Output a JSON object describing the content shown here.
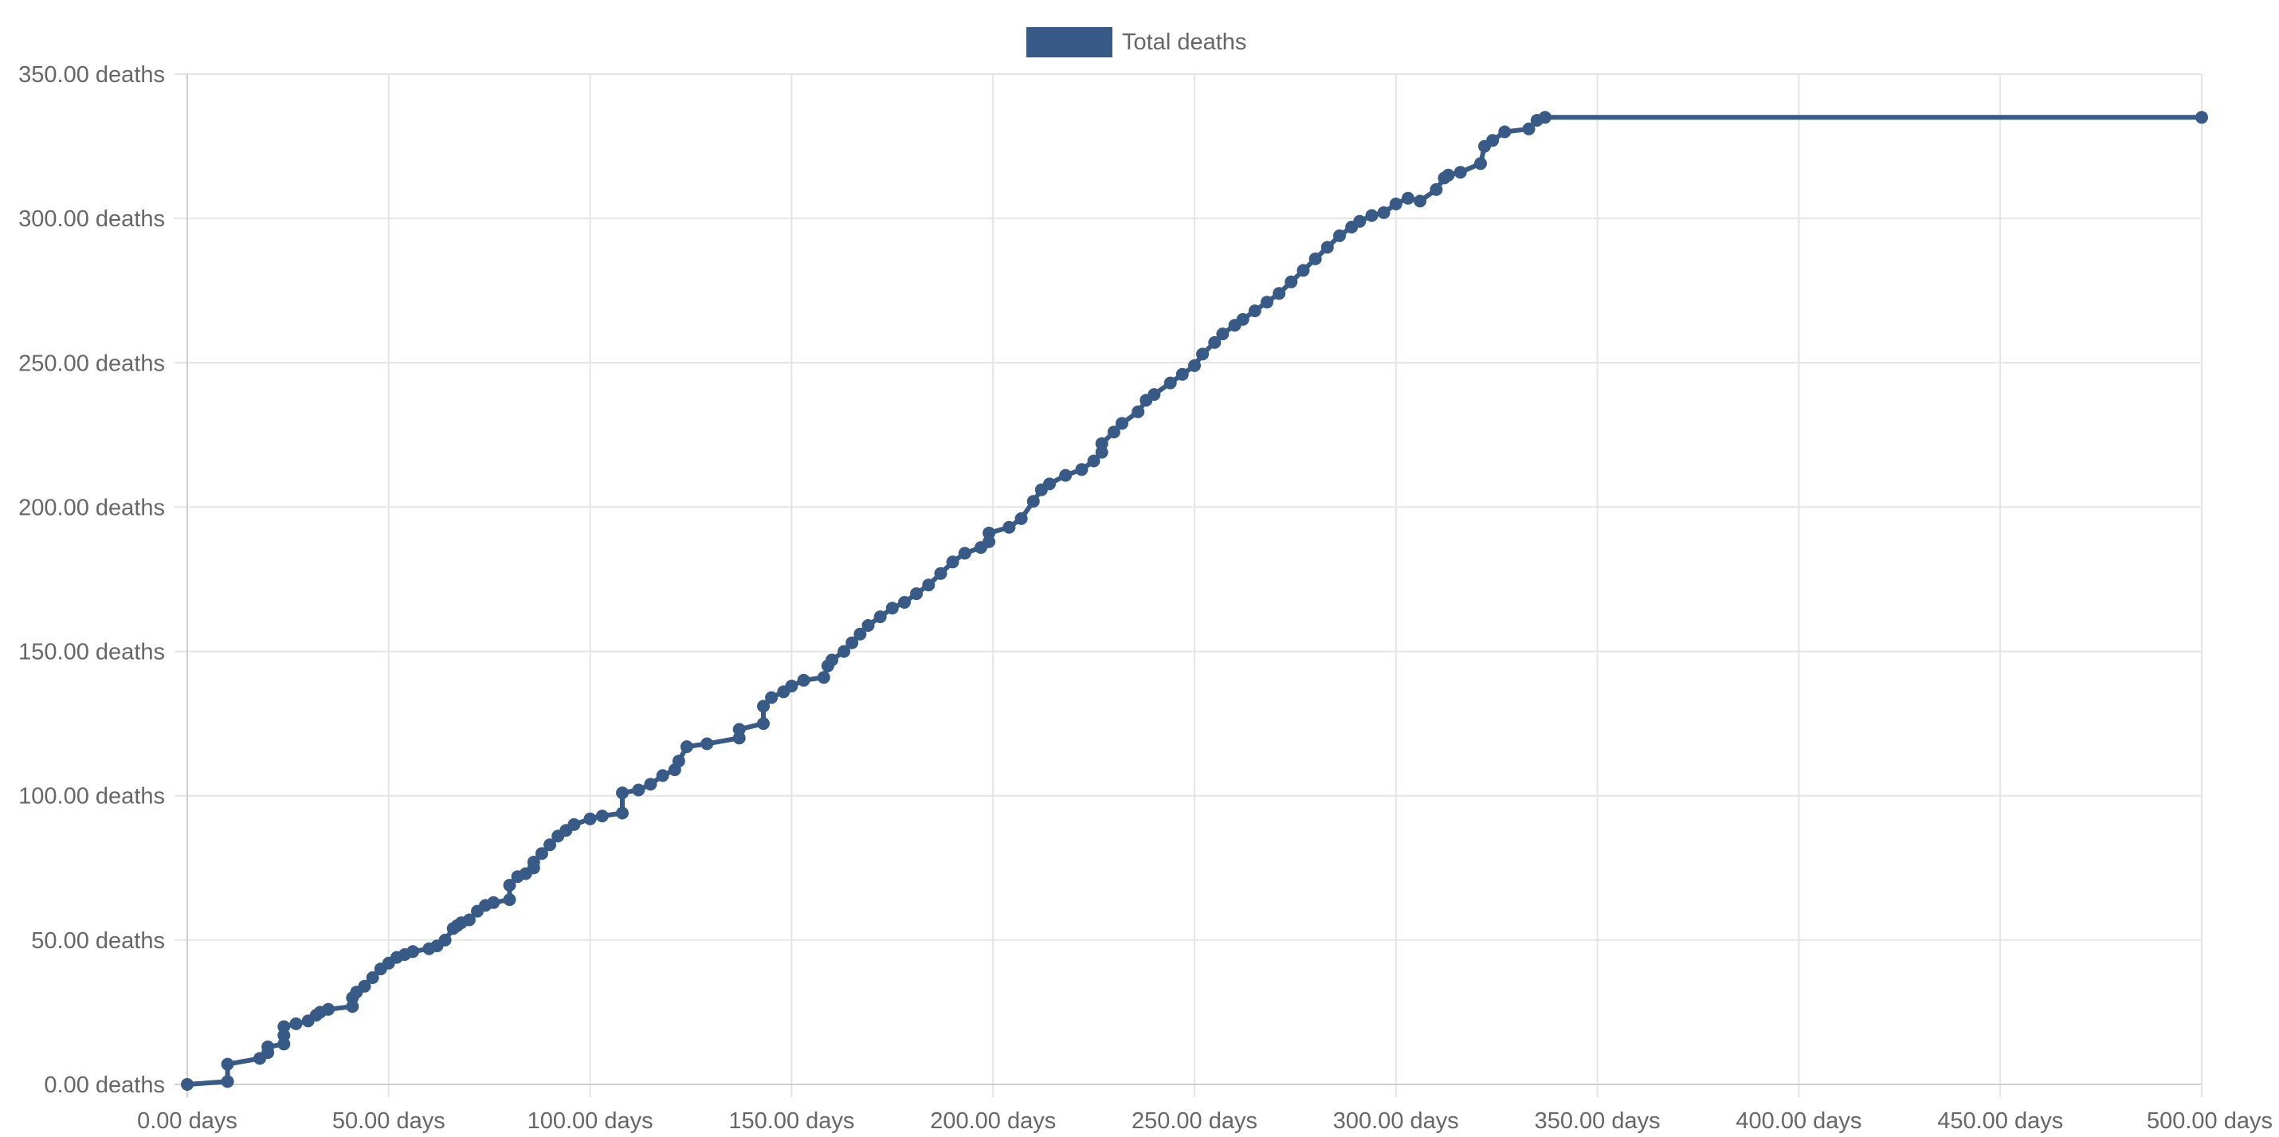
{
  "chart_data": {
    "type": "line",
    "title": "",
    "xlabel": "",
    "ylabel": "",
    "xlim": [
      0,
      500
    ],
    "ylim": [
      0,
      350
    ],
    "grid": true,
    "legend_position": "top-center",
    "x_ticks": [
      0,
      50,
      100,
      150,
      200,
      250,
      300,
      350,
      400,
      450,
      500
    ],
    "y_ticks": [
      0,
      50,
      100,
      150,
      200,
      250,
      300,
      350
    ],
    "x_tick_labels": [
      "0.00 days",
      "50.00 days",
      "100.00 days",
      "150.00 days",
      "200.00 days",
      "250.00 days",
      "300.00 days",
      "350.00 days",
      "400.00 days",
      "450.00 days",
      "500.00 days"
    ],
    "y_tick_labels": [
      "0.00 deaths",
      "50.00 deaths",
      "100.00 deaths",
      "150.00 deaths",
      "200.00 deaths",
      "250.00 deaths",
      "300.00 deaths",
      "350.00 deaths"
    ],
    "series": [
      {
        "name": "Total deaths",
        "color": "#375a86",
        "x": [
          0,
          10,
          10,
          18,
          20,
          20,
          24,
          24,
          24,
          27,
          30,
          32,
          33,
          35,
          41,
          41,
          42,
          44,
          46,
          48,
          50,
          52,
          54,
          56,
          60,
          62,
          64,
          66,
          67,
          68,
          70,
          72,
          74,
          76,
          80,
          80,
          82,
          84,
          86,
          86,
          88,
          90,
          92,
          94,
          96,
          100,
          103,
          108,
          108,
          112,
          115,
          118,
          121,
          122,
          124,
          129,
          137,
          137,
          143,
          143,
          145,
          148,
          150,
          153,
          158,
          159,
          160,
          163,
          165,
          167,
          169,
          172,
          175,
          178,
          181,
          184,
          187,
          190,
          193,
          197,
          199,
          199,
          204,
          207,
          210,
          212,
          214,
          218,
          222,
          225,
          227,
          227,
          230,
          232,
          236,
          238,
          240,
          244,
          247,
          250,
          252,
          255,
          257,
          260,
          262,
          265,
          268,
          271,
          274,
          277,
          280,
          283,
          286,
          289,
          291,
          294,
          297,
          300,
          303,
          306,
          310,
          312,
          313,
          316,
          321,
          322,
          324,
          327,
          333,
          335,
          337,
          500
        ],
        "values": [
          0,
          1,
          7,
          9,
          11,
          13,
          14,
          17,
          20,
          21,
          22,
          24,
          25,
          26,
          27,
          30,
          32,
          34,
          37,
          40,
          42,
          44,
          45,
          46,
          47,
          48,
          50,
          54,
          55,
          56,
          57,
          60,
          62,
          63,
          64,
          69,
          72,
          73,
          75,
          77,
          80,
          83,
          86,
          88,
          90,
          92,
          93,
          94,
          101,
          102,
          104,
          107,
          109,
          112,
          117,
          118,
          120,
          123,
          125,
          131,
          134,
          136,
          138,
          140,
          141,
          145,
          147,
          150,
          153,
          156,
          159,
          162,
          165,
          167,
          170,
          173,
          177,
          181,
          184,
          186,
          188,
          191,
          193,
          196,
          202,
          206,
          208,
          211,
          213,
          216,
          219,
          222,
          226,
          229,
          233,
          237,
          239,
          243,
          246,
          249,
          253,
          257,
          260,
          263,
          265,
          268,
          271,
          274,
          278,
          282,
          286,
          290,
          294,
          297,
          299,
          301,
          302,
          305,
          307,
          306,
          310,
          314,
          315,
          316,
          319,
          325,
          327,
          330,
          331,
          334,
          335,
          335
        ]
      }
    ]
  }
}
